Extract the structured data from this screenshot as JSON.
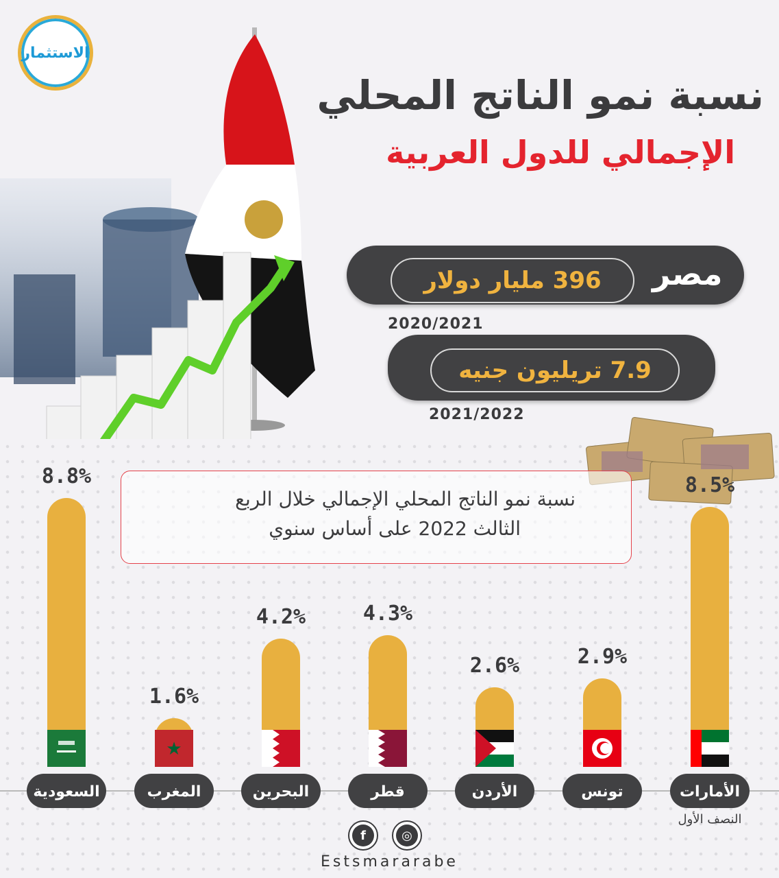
{
  "brand": {
    "logo_text": "الاستثمار",
    "footer_text": "Estsmararabe",
    "icons": [
      "facebook-icon",
      "dribbble-icon"
    ]
  },
  "header": {
    "title_line1": "نسبة نمو الناتج المحلي",
    "title_line2": "الإجمالي للدول العربية"
  },
  "egypt": {
    "country": "مصر",
    "stat1": "396 مليار دولار",
    "year1": "2020/2021",
    "stat2": "7.9 تريليون جنيه",
    "year2": "2021/2022"
  },
  "note": {
    "line1": "نسبة نمو الناتج المحلي الإجمالي خلال الربع",
    "line2": "الثالث 2022 على أساس سنوي"
  },
  "colors": {
    "bar": "#e8b03f",
    "pill": "#414143",
    "title": "#3b3b3d",
    "accent_red": "#e4242e"
  },
  "chart_data": {
    "type": "bar",
    "categories": [
      "السعودية",
      "المغرب",
      "البحرين",
      "قطر",
      "الأردن",
      "تونس",
      "الأمارات"
    ],
    "values": [
      8.8,
      1.6,
      4.2,
      4.3,
      2.6,
      2.9,
      8.5
    ],
    "data_labels": [
      "8.8%",
      "1.6%",
      "4.2%",
      "4.3%",
      "2.6%",
      "2.9%",
      "8.5%"
    ],
    "flags": [
      "saudi-flag-icon",
      "morocco-flag-icon",
      "bahrain-flag-icon",
      "qatar-flag-icon",
      "jordan-flag-icon",
      "tunisia-flag-icon",
      "uae-flag-icon"
    ],
    "uae_note": "النصف الأول",
    "ylim": [
      0,
      8.8
    ]
  }
}
